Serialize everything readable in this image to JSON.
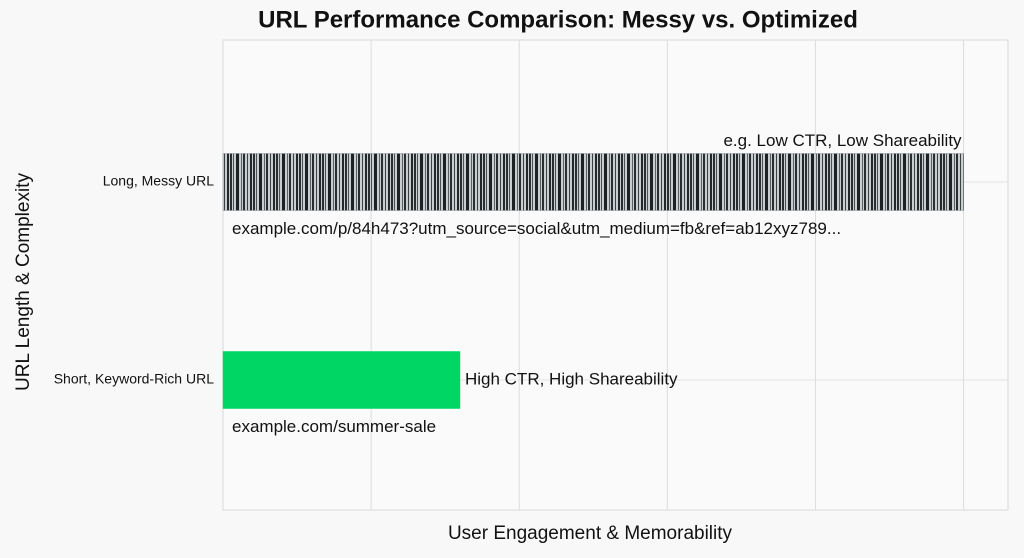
{
  "chart_data": {
    "type": "barh",
    "title": "URL Performance Comparison: Messy vs. Optimized",
    "xlabel": "User Engagement & Memorability",
    "ylabel": "URL Length & Complexity",
    "categories": [
      "Long, Messy URL",
      "Short, Keyword-Rich URL"
    ],
    "values": [
      5.0,
      1.6
    ],
    "colors": [
      "#8a9296",
      "#00d664"
    ],
    "annotations": [
      "e.g. Low CTR, Low Shareability",
      "High CTR, High Shareability"
    ],
    "urls": [
      "example.com/p/84h473?utm_source=social&utm_medium=fb&ref=ab12xyz789...",
      "example.com/summer-sale"
    ],
    "xlim": [
      0,
      5.3
    ],
    "xticks": [
      1,
      2,
      3,
      4,
      5
    ],
    "grid": true
  }
}
